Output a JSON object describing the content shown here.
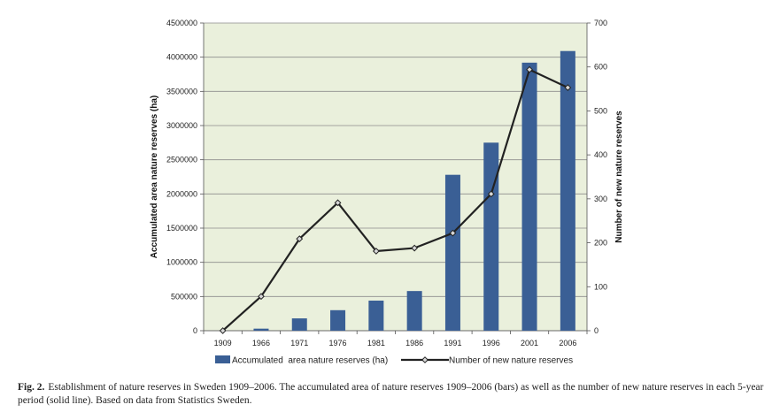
{
  "chart_data": {
    "type": "bar",
    "categories": [
      "1909",
      "1966",
      "1971",
      "1976",
      "1981",
      "1986",
      "1991",
      "1996",
      "2001",
      "2006"
    ],
    "series": [
      {
        "name": "Accumulated  area nature reserves (ha)",
        "type": "bar",
        "axis": "left",
        "values": [
          0,
          30000,
          180000,
          300000,
          440000,
          580000,
          2280000,
          2750000,
          3920000,
          4090000
        ]
      },
      {
        "name": "Number of new nature reserves",
        "type": "line",
        "axis": "right",
        "values": [
          0,
          78,
          209,
          291,
          181,
          188,
          222,
          311,
          594,
          553
        ]
      }
    ],
    "ylabel": "Accumulated area nature reserves (ha)",
    "y2label": "Number of new nature reserves",
    "ylim": [
      0,
      4500000
    ],
    "y2lim": [
      0,
      700
    ],
    "yticks": [
      "0",
      "500000",
      "1000000",
      "1500000",
      "2000000",
      "2500000",
      "3000000",
      "3500000",
      "4000000",
      "4500000"
    ],
    "y2ticks": [
      "0",
      "100",
      "200",
      "300",
      "400",
      "500",
      "600",
      "700"
    ],
    "grid": true,
    "legend": "bottom",
    "colors": {
      "bar": "#3a5f95",
      "line": "#222222",
      "plot_bg": "#eaf0dc",
      "grid": "#8c8c8c"
    }
  },
  "caption": {
    "label": "Fig. 2.",
    "text": "Establishment of nature reserves in Sweden 1909–2006. The accumulated area of nature reserves 1909–2006 (bars) as well as the number of new nature reserves in each 5-year period (solid line). Based on data from Statistics Sweden."
  }
}
